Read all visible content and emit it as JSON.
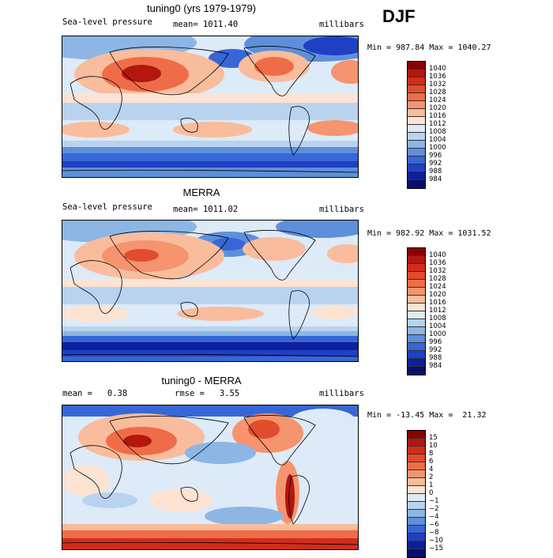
{
  "season": "DJF",
  "panels": [
    {
      "title": "tuning0 (yrs 1979-1979)",
      "left": "Sea-level pressure",
      "mid": "mean= 1011.40",
      "right": "millibars",
      "minmax": "Min = 987.84 Max = 1040.27",
      "levels": [
        "1040",
        "1036",
        "1032",
        "1028",
        "1024",
        "1020",
        "1016",
        "1012",
        "1008",
        "1004",
        "1000",
        "996",
        "992",
        "988",
        "984"
      ],
      "colors": [
        "#8b0000",
        "#b3170e",
        "#d02d1c",
        "#e14c2c",
        "#ee6d48",
        "#f5946f",
        "#f9bc9c",
        "#fde3d1",
        "#ddeaf7",
        "#b9d3ef",
        "#8db6e5",
        "#5e8fdb",
        "#3766d6",
        "#1f40c4",
        "#0e1f9c",
        "#06106b"
      ]
    },
    {
      "title": "MERRA",
      "left": "Sea-level pressure",
      "mid": "mean= 1011.02",
      "right": "millibars",
      "minmax": "Min = 982.92 Max = 1031.52",
      "levels": [
        "1040",
        "1036",
        "1032",
        "1028",
        "1024",
        "1020",
        "1016",
        "1012",
        "1008",
        "1004",
        "1000",
        "996",
        "992",
        "988",
        "984"
      ],
      "colors": [
        "#8b0000",
        "#b3170e",
        "#d02d1c",
        "#e14c2c",
        "#ee6d48",
        "#f5946f",
        "#f9bc9c",
        "#fde3d1",
        "#ddeaf7",
        "#b9d3ef",
        "#8db6e5",
        "#5e8fdb",
        "#3766d6",
        "#1f40c4",
        "#0e1f9c",
        "#06106b"
      ]
    },
    {
      "title": "tuning0 - MERRA",
      "left": "mean =   0.38",
      "mid": "rmse =   3.55",
      "right": "millibars",
      "minmax": "Min = -13.45 Max =  21.32",
      "levels": [
        "15",
        "10",
        "8",
        "6",
        "4",
        "2",
        "1",
        "0",
        "−1",
        "−2",
        "−4",
        "−6",
        "−8",
        "−10",
        "−15"
      ],
      "colors": [
        "#8b0000",
        "#b3170e",
        "#d02d1c",
        "#e14c2c",
        "#ee6d48",
        "#f5946f",
        "#f9bc9c",
        "#fde3d1",
        "#ddeaf7",
        "#b9d3ef",
        "#8db6e5",
        "#5e8fdb",
        "#3766d6",
        "#1f40c4",
        "#0e1f9c",
        "#06106b"
      ]
    }
  ]
}
